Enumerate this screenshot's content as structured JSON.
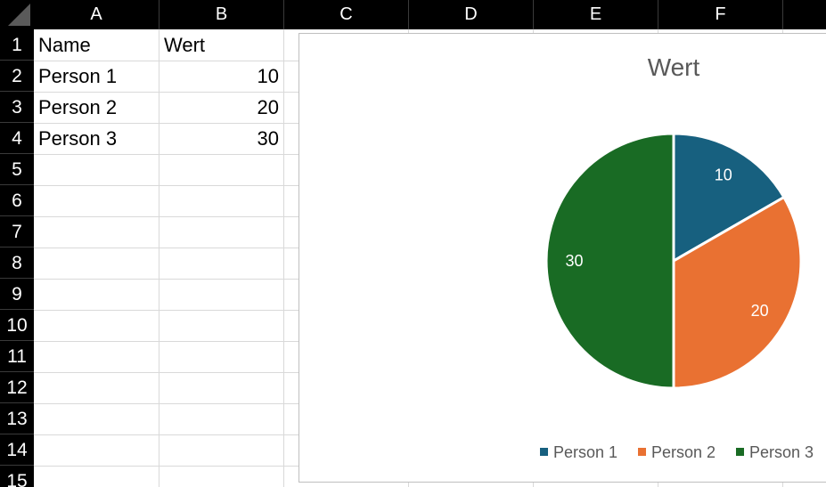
{
  "grid": {
    "columns": [
      "A",
      "B",
      "C",
      "D",
      "E",
      "F"
    ],
    "rows": [
      "1",
      "2",
      "3",
      "4",
      "5",
      "6",
      "7",
      "8",
      "9",
      "10",
      "11",
      "12",
      "13",
      "14",
      "15"
    ],
    "cells": [
      {
        "ref": "A1",
        "value": "Name"
      },
      {
        "ref": "B1",
        "value": "Wert"
      },
      {
        "ref": "A2",
        "value": "Person 1"
      },
      {
        "ref": "B2",
        "value": "10"
      },
      {
        "ref": "A3",
        "value": "Person 2"
      },
      {
        "ref": "B3",
        "value": "20"
      },
      {
        "ref": "A4",
        "value": "Person 3"
      },
      {
        "ref": "B4",
        "value": "30"
      }
    ]
  },
  "chart_data": {
    "type": "pie",
    "title": "Wert",
    "categories": [
      "Person 1",
      "Person 2",
      "Person 3"
    ],
    "values": [
      10,
      20,
      30
    ],
    "data_labels": [
      "10",
      "20",
      "30"
    ],
    "colors": [
      "#17607f",
      "#e97132",
      "#196b24"
    ],
    "legend": "bottom"
  }
}
